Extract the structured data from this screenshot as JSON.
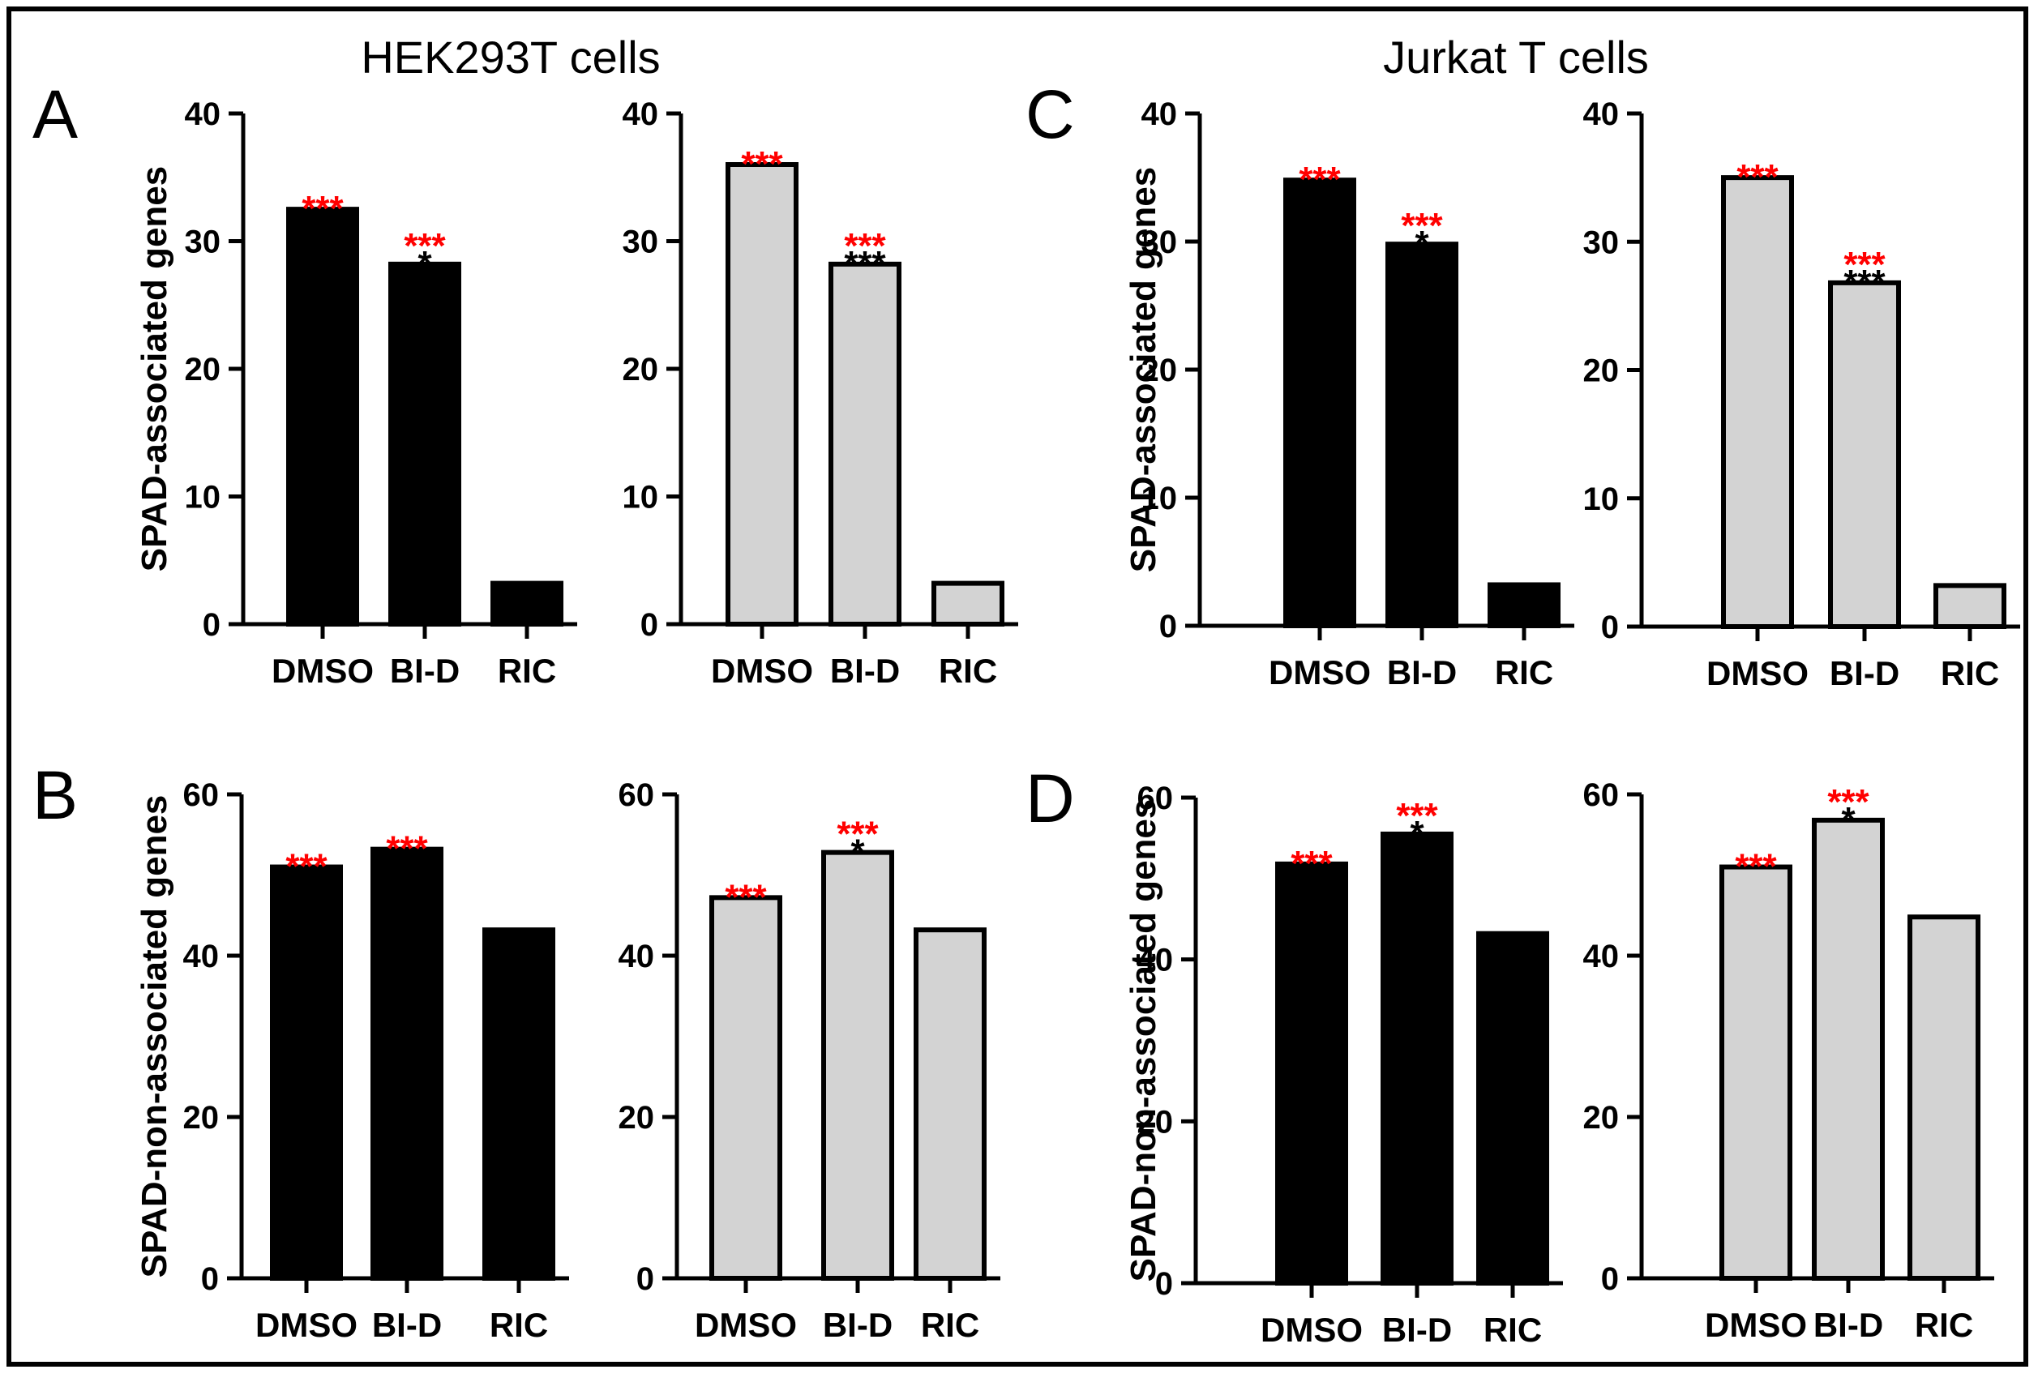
{
  "titles": [
    "HEK293T cells",
    "Jurkat T cells"
  ],
  "chart_data": [
    {
      "panel": "A",
      "type": "bar",
      "title": "HEK293T cells",
      "ylabel": "SPAD-associated genes",
      "categories": [
        "DMSO",
        "BI-D",
        "RIC"
      ],
      "values": [
        32.5,
        28.2,
        3.2
      ],
      "ylim": [
        0,
        40
      ],
      "yticks": [
        "0",
        "10",
        "20",
        "30",
        "40"
      ],
      "fill": "#000000",
      "annotations": [
        {
          "red": "***",
          "black": ""
        },
        {
          "red": "***",
          "black": "*"
        },
        {
          "red": "",
          "black": ""
        }
      ]
    },
    {
      "panel": "",
      "type": "bar",
      "title": "",
      "ylabel": "",
      "categories": [
        "DMSO",
        "BI-D",
        "RIC"
      ],
      "values": [
        36.0,
        28.2,
        3.2
      ],
      "ylim": [
        0,
        40
      ],
      "yticks": [
        "0",
        "10",
        "20",
        "30",
        "40"
      ],
      "fill": "#d3d3d3",
      "annotations": [
        {
          "red": "***",
          "black": ""
        },
        {
          "red": "***",
          "black": "***"
        },
        {
          "red": "",
          "black": ""
        }
      ]
    },
    {
      "panel": "C",
      "type": "bar",
      "title": "Jurkat T cells",
      "ylabel": "SPAD-associated genes",
      "categories": [
        "DMSO",
        "BI-D",
        "RIC"
      ],
      "values": [
        34.8,
        29.8,
        3.2
      ],
      "ylim": [
        0,
        40
      ],
      "yticks": [
        "0",
        "10",
        "20",
        "30",
        "40"
      ],
      "fill": "#000000",
      "annotations": [
        {
          "red": "***",
          "black": ""
        },
        {
          "red": "***",
          "black": "*"
        },
        {
          "red": "",
          "black": ""
        }
      ]
    },
    {
      "panel": "",
      "type": "bar",
      "title": "",
      "ylabel": "",
      "categories": [
        "DMSO",
        "BI-D",
        "RIC"
      ],
      "values": [
        35.0,
        26.8,
        3.2
      ],
      "ylim": [
        0,
        40
      ],
      "yticks": [
        "0",
        "10",
        "20",
        "30",
        "40"
      ],
      "fill": "#d3d3d3",
      "annotations": [
        {
          "red": "***",
          "black": ""
        },
        {
          "red": "***",
          "black": "***"
        },
        {
          "red": "",
          "black": ""
        }
      ]
    },
    {
      "panel": "B",
      "type": "bar",
      "title": "",
      "ylabel": "SPAD-non-associated genes",
      "categories": [
        "DMSO",
        "BI-D",
        "RIC"
      ],
      "values": [
        51.0,
        53.2,
        43.2
      ],
      "ylim": [
        0,
        60
      ],
      "yticks": [
        "0",
        "20",
        "40",
        "60"
      ],
      "fill": "#000000",
      "annotations": [
        {
          "red": "***",
          "black": ""
        },
        {
          "red": "***",
          "black": ""
        },
        {
          "red": "",
          "black": ""
        }
      ]
    },
    {
      "panel": "",
      "type": "bar",
      "title": "",
      "ylabel": "",
      "categories": [
        "DMSO",
        "BI-D",
        "RIC"
      ],
      "values": [
        47.2,
        52.8,
        43.2
      ],
      "ylim": [
        0,
        60
      ],
      "yticks": [
        "0",
        "20",
        "40",
        "60"
      ],
      "fill": "#d3d3d3",
      "annotations": [
        {
          "red": "***",
          "black": ""
        },
        {
          "red": "***",
          "black": "*"
        },
        {
          "red": "",
          "black": ""
        }
      ]
    },
    {
      "panel": "D",
      "type": "bar",
      "title": "",
      "ylabel": "SPAD-non-associated genes",
      "categories": [
        "DMSO",
        "BI-D",
        "RIC"
      ],
      "values": [
        51.8,
        55.5,
        43.2
      ],
      "ylim": [
        0,
        60
      ],
      "yticks": [
        "0",
        "20",
        "40",
        "60"
      ],
      "fill": "#000000",
      "annotations": [
        {
          "red": "***",
          "black": ""
        },
        {
          "red": "***",
          "black": "*"
        },
        {
          "red": "",
          "black": ""
        }
      ]
    },
    {
      "panel": "",
      "type": "bar",
      "title": "",
      "ylabel": "",
      "categories": [
        "DMSO",
        "BI-D",
        "RIC"
      ],
      "values": [
        51.0,
        56.8,
        44.8
      ],
      "ylim": [
        0,
        60
      ],
      "yticks": [
        "0",
        "20",
        "40",
        "60"
      ],
      "fill": "#d3d3d3",
      "annotations": [
        {
          "red": "***",
          "black": ""
        },
        {
          "red": "***",
          "black": "*"
        },
        {
          "red": "",
          "black": ""
        }
      ]
    }
  ],
  "colors": {
    "red_star": "#ff0000",
    "black_star": "#000000"
  }
}
